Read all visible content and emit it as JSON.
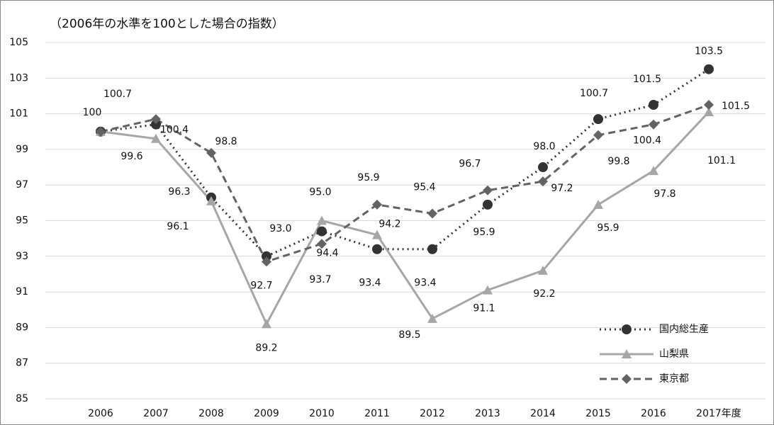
{
  "chart_data": {
    "type": "line",
    "title": "（2006年の水準を100とした場合の指数）",
    "categories": [
      "2006",
      "2007",
      "2008",
      "2009",
      "2010",
      "2011",
      "2012",
      "2013",
      "2014",
      "2015",
      "2016",
      "2017年度"
    ],
    "series": [
      {
        "name": "国内総生産",
        "color": "#333333",
        "dash": "dotted",
        "marker": "circle",
        "values": [
          100,
          100.4,
          96.3,
          93.0,
          94.4,
          93.4,
          93.4,
          95.9,
          98.0,
          100.7,
          101.5,
          103.5
        ],
        "value_labels": [
          "100",
          "100.4",
          "96.3",
          "93.0",
          "94.4",
          "93.4",
          "93.4",
          "95.9",
          "98.0",
          "100.7",
          "101.5",
          "103.5"
        ]
      },
      {
        "name": "山梨県",
        "color": "#a6a6a6",
        "dash": "solid",
        "marker": "triangle",
        "values": [
          100,
          99.6,
          96.1,
          89.2,
          95.0,
          94.2,
          89.5,
          91.1,
          92.2,
          95.9,
          97.8,
          101.1
        ],
        "value_labels": [
          null,
          "99.6",
          "96.1",
          "89.2",
          "95.0",
          "94.2",
          "89.5",
          "91.1",
          "92.2",
          "95.9",
          "97.8",
          "101.1"
        ]
      },
      {
        "name": "東京都",
        "color": "#636363",
        "dash": "dashed",
        "marker": "diamond",
        "values": [
          100,
          100.7,
          98.8,
          92.7,
          93.7,
          95.9,
          95.4,
          96.7,
          97.2,
          99.8,
          100.4,
          101.5
        ],
        "value_labels": [
          null,
          "100.7",
          "98.8",
          "92.7",
          "93.7",
          "95.9",
          "95.4",
          "96.7",
          "97.2",
          "99.8",
          "100.4",
          "101.5"
        ]
      }
    ],
    "ylim": [
      85,
      105
    ],
    "yticks": [
      85,
      87,
      89,
      91,
      93,
      95,
      97,
      99,
      101,
      103,
      105
    ],
    "grid": true,
    "legend": "lower right"
  }
}
